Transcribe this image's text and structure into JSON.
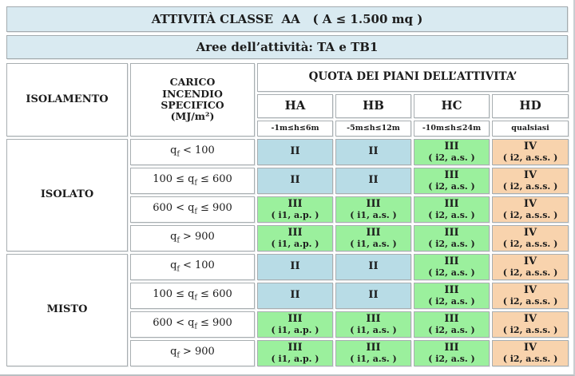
{
  "title": "ATTIVITÀ CLASSE  AA   ( A ≤ 1.500 mq )",
  "subtitle": "Aree dell’attività: TA e TB1",
  "colors": {
    "bar_bg": "#d9eaf1",
    "cell_blue": "#b8dce6",
    "cell_green": "#9bf09d",
    "cell_peach": "#f8d3ad",
    "border": "#a8aeb1"
  },
  "header": {
    "isolamento": "ISOLAMENTO",
    "carico_lines": [
      "CARICO",
      "INCENDIO",
      "SPECIFICO"
    ],
    "carico_unit": "(MJ/m²)",
    "quota": "QUOTA DEI PIANI DELL’ATTIVITA’",
    "cols": [
      {
        "label": "HA",
        "range": "-1m≤h≤6m"
      },
      {
        "label": "HB",
        "range": "-5m≤h≤12m"
      },
      {
        "label": "HC",
        "range": "-10m≤h≤24m"
      },
      {
        "label": "HD",
        "range": "qualsiasi"
      }
    ]
  },
  "groups": [
    {
      "name": "ISOLATO",
      "rows": [
        {
          "carico": {
            "before": "q",
            "sub": "f",
            "after": " < 100"
          },
          "cells": [
            {
              "level": "II",
              "note": "",
              "color": "blue"
            },
            {
              "level": "II",
              "note": "",
              "color": "blue"
            },
            {
              "level": "III",
              "note": "( i2, a.s. )",
              "color": "green"
            },
            {
              "level": "IV",
              "note": "( i2, a.s.s. )",
              "color": "peach"
            }
          ]
        },
        {
          "carico": {
            "before": "100 ≤ q",
            "sub": "f",
            "after": " ≤ 600"
          },
          "cells": [
            {
              "level": "II",
              "note": "",
              "color": "blue"
            },
            {
              "level": "II",
              "note": "",
              "color": "blue"
            },
            {
              "level": "III",
              "note": "( i2, a.s. )",
              "color": "green"
            },
            {
              "level": "IV",
              "note": "( i2, a.s.s. )",
              "color": "peach"
            }
          ]
        },
        {
          "carico": {
            "before": "600 < q",
            "sub": "f",
            "after": " ≤ 900"
          },
          "cells": [
            {
              "level": "III",
              "note": "( i1, a.p. )",
              "color": "green"
            },
            {
              "level": "III",
              "note": "( i1, a.s. )",
              "color": "green"
            },
            {
              "level": "III",
              "note": "( i2, a.s. )",
              "color": "green"
            },
            {
              "level": "IV",
              "note": "( i2, a.s.s. )",
              "color": "peach"
            }
          ]
        },
        {
          "carico": {
            "before": "q",
            "sub": "f",
            "after": " > 900"
          },
          "cells": [
            {
              "level": "III",
              "note": "( i1, a.p. )",
              "color": "green"
            },
            {
              "level": "III",
              "note": "( i1, a.s. )",
              "color": "green"
            },
            {
              "level": "III",
              "note": "( i2, a.s. )",
              "color": "green"
            },
            {
              "level": "IV",
              "note": "( i2, a.s.s. )",
              "color": "peach"
            }
          ]
        }
      ]
    },
    {
      "name": "MISTO",
      "rows": [
        {
          "carico": {
            "before": "q",
            "sub": "f",
            "after": " < 100"
          },
          "cells": [
            {
              "level": "II",
              "note": "",
              "color": "blue"
            },
            {
              "level": "II",
              "note": "",
              "color": "blue"
            },
            {
              "level": "III",
              "note": "( i2, a.s. )",
              "color": "green"
            },
            {
              "level": "IV",
              "note": "( i2, a.s.s. )",
              "color": "peach"
            }
          ]
        },
        {
          "carico": {
            "before": "100 ≤ q",
            "sub": "f",
            "after": " ≤ 600"
          },
          "cells": [
            {
              "level": "II",
              "note": "",
              "color": "blue"
            },
            {
              "level": "II",
              "note": "",
              "color": "blue"
            },
            {
              "level": "III",
              "note": "( i2, a.s. )",
              "color": "green"
            },
            {
              "level": "IV",
              "note": "( i2, a.s.s. )",
              "color": "peach"
            }
          ]
        },
        {
          "carico": {
            "before": "600 < q",
            "sub": "f",
            "after": " ≤ 900"
          },
          "cells": [
            {
              "level": "III",
              "note": "( i1, a.p. )",
              "color": "green"
            },
            {
              "level": "III",
              "note": "( i1, a.s. )",
              "color": "green"
            },
            {
              "level": "III",
              "note": "( i2, a.s. )",
              "color": "green"
            },
            {
              "level": "IV",
              "note": "( i2, a.s.s. )",
              "color": "peach"
            }
          ]
        },
        {
          "carico": {
            "before": "q",
            "sub": "f",
            "after": " > 900"
          },
          "cells": [
            {
              "level": "III",
              "note": "( i1, a.p. )",
              "color": "green"
            },
            {
              "level": "III",
              "note": "( i1, a.s. )",
              "color": "green"
            },
            {
              "level": "III",
              "note": "( i2, a.s. )",
              "color": "green"
            },
            {
              "level": "IV",
              "note": "( i2, a.s.s. )",
              "color": "peach"
            }
          ]
        }
      ]
    }
  ]
}
